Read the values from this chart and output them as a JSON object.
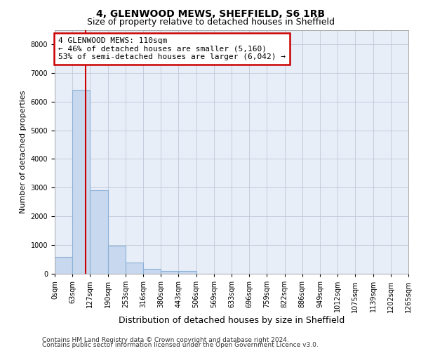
{
  "title1": "4, GLENWOOD MEWS, SHEFFIELD, S6 1RB",
  "title2": "Size of property relative to detached houses in Sheffield",
  "xlabel": "Distribution of detached houses by size in Sheffield",
  "ylabel": "Number of detached properties",
  "bar_color": "#c8d8ee",
  "bar_edge_color": "#8ab0d8",
  "background_color": "#e8eef8",
  "grid_color": "#c0c8d8",
  "bin_labels": [
    "0sqm",
    "63sqm",
    "127sqm",
    "190sqm",
    "253sqm",
    "316sqm",
    "380sqm",
    "443sqm",
    "506sqm",
    "569sqm",
    "633sqm",
    "696sqm",
    "759sqm",
    "822sqm",
    "886sqm",
    "949sqm",
    "1012sqm",
    "1075sqm",
    "1139sqm",
    "1202sqm",
    "1265sqm"
  ],
  "bar_heights": [
    580,
    6400,
    2920,
    990,
    380,
    175,
    110,
    90,
    0,
    0,
    0,
    0,
    0,
    0,
    0,
    0,
    0,
    0,
    0,
    0
  ],
  "bin_width": 63,
  "vline_color": "#cc0000",
  "vline_x": 110,
  "annotation_line1": "4 GLENWOOD MEWS: 110sqm",
  "annotation_line2": "← 46% of detached houses are smaller (5,160)",
  "annotation_line3": "53% of semi-detached houses are larger (6,042) →",
  "annotation_box_color": "#ffffff",
  "annotation_border_color": "#cc0000",
  "ylim": [
    0,
    8500
  ],
  "yticks": [
    0,
    1000,
    2000,
    3000,
    4000,
    5000,
    6000,
    7000,
    8000
  ],
  "footnote1": "Contains HM Land Registry data © Crown copyright and database right 2024.",
  "footnote2": "Contains public sector information licensed under the Open Government Licence v3.0.",
  "title1_fontsize": 10,
  "title2_fontsize": 9,
  "ylabel_fontsize": 8,
  "xlabel_fontsize": 9,
  "tick_fontsize": 7,
  "annot_fontsize": 8,
  "footnote_fontsize": 6.5
}
